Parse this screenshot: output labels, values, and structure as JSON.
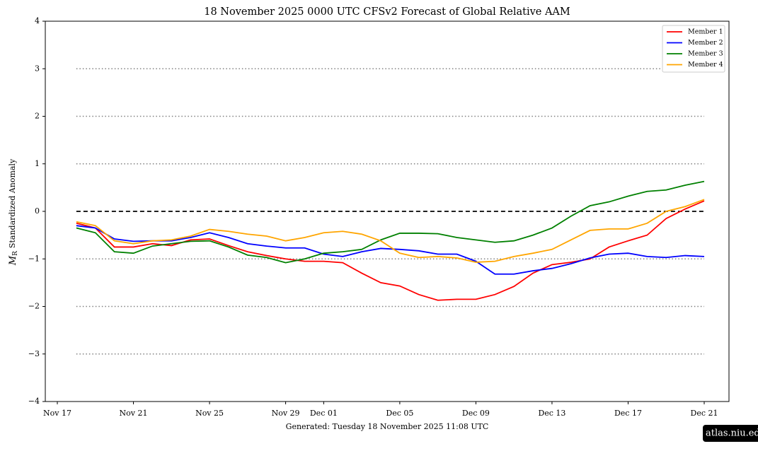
{
  "chart_data": {
    "type": "line",
    "title": "18  November  2025 0000 UTC   CFSv2 Forecast of Global Relative AAM",
    "ylabel_symbol": "M",
    "ylabel_subscript": "R",
    "ylabel": "Standardized Anomaly",
    "footer": "Generated: Tuesday  18  November  2025  11:08 UTC",
    "badge": "atlas.niu.edu",
    "legend": "upper right",
    "ylim": [
      -4,
      4
    ],
    "yticks": [
      {
        "value": -4,
        "label": "−4"
      },
      {
        "value": -3,
        "label": "−3"
      },
      {
        "value": -2,
        "label": "−2"
      },
      {
        "value": -1,
        "label": "−1"
      },
      0,
      1,
      2,
      3,
      4
    ],
    "reference_lines": [
      -3,
      -2,
      -1,
      1,
      2,
      3
    ],
    "zero_line": 0,
    "xlim": [
      "Nov 17",
      "Dec 21"
    ],
    "xticks": [
      "Nov 17",
      "Nov 21",
      "Nov 25",
      "Nov 29",
      "Dec 01",
      "Dec 05",
      "Dec 09",
      "Dec 13",
      "Dec 17",
      "Dec 21"
    ],
    "x": [
      "Nov 18",
      "Nov 19",
      "Nov 20",
      "Nov 21",
      "Nov 22",
      "Nov 23",
      "Nov 24",
      "Nov 25",
      "Nov 26",
      "Nov 27",
      "Nov 28",
      "Nov 29",
      "Nov 30",
      "Dec 01",
      "Dec 02",
      "Dec 03",
      "Dec 04",
      "Dec 05",
      "Dec 06",
      "Dec 07",
      "Dec 08",
      "Dec 09",
      "Dec 10",
      "Dec 11",
      "Dec 12",
      "Dec 13",
      "Dec 14",
      "Dec 15",
      "Dec 16",
      "Dec 17",
      "Dec 18",
      "Dec 19",
      "Dec 20",
      "Dec 21"
    ],
    "series": [
      {
        "name": "Member 1",
        "color": "#ff0000",
        "values": [
          -0.25,
          -0.35,
          -0.75,
          -0.75,
          -0.68,
          -0.72,
          -0.6,
          -0.58,
          -0.72,
          -0.85,
          -0.93,
          -1.0,
          -1.05,
          -1.05,
          -1.08,
          -1.3,
          -1.5,
          -1.57,
          -1.75,
          -1.87,
          -1.85,
          -1.85,
          -1.75,
          -1.58,
          -1.3,
          -1.12,
          -1.07,
          -1.0,
          -0.75,
          -0.62,
          -0.5,
          -0.15,
          0.05,
          0.22
        ]
      },
      {
        "name": "Member 2",
        "color": "#0000ff",
        "values": [
          -0.3,
          -0.35,
          -0.58,
          -0.63,
          -0.62,
          -0.62,
          -0.55,
          -0.45,
          -0.55,
          -0.68,
          -0.73,
          -0.77,
          -0.77,
          -0.9,
          -0.95,
          -0.85,
          -0.78,
          -0.8,
          -0.83,
          -0.9,
          -0.9,
          -1.05,
          -1.32,
          -1.32,
          -1.25,
          -1.2,
          -1.1,
          -0.98,
          -0.9,
          -0.88,
          -0.95,
          -0.97,
          -0.93,
          -0.95
        ]
      },
      {
        "name": "Member 3",
        "color": "#008000",
        "values": [
          -0.35,
          -0.45,
          -0.85,
          -0.88,
          -0.73,
          -0.68,
          -0.63,
          -0.62,
          -0.75,
          -0.92,
          -0.97,
          -1.08,
          -1.0,
          -0.88,
          -0.85,
          -0.8,
          -0.6,
          -0.46,
          -0.46,
          -0.47,
          -0.55,
          -0.6,
          -0.65,
          -0.62,
          -0.5,
          -0.35,
          -0.1,
          0.12,
          0.2,
          0.32,
          0.42,
          0.45,
          0.55,
          0.63
        ]
      },
      {
        "name": "Member 4",
        "color": "#ffa500",
        "values": [
          -0.22,
          -0.3,
          -0.62,
          -0.68,
          -0.62,
          -0.6,
          -0.52,
          -0.38,
          -0.42,
          -0.48,
          -0.52,
          -0.62,
          -0.55,
          -0.45,
          -0.42,
          -0.48,
          -0.62,
          -0.88,
          -0.97,
          -0.95,
          -0.98,
          -1.07,
          -1.05,
          -0.95,
          -0.88,
          -0.8,
          -0.6,
          -0.4,
          -0.37,
          -0.37,
          -0.25,
          0.0,
          0.1,
          0.25
        ]
      }
    ]
  }
}
